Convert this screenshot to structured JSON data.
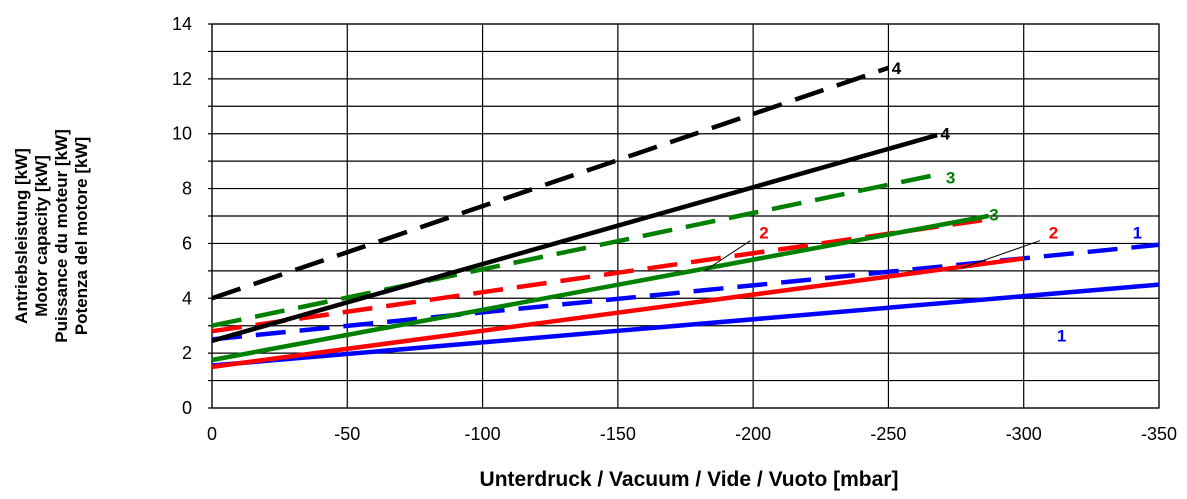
{
  "chart_data": {
    "type": "line",
    "xlabel": "Unterdruck / Vacuum / Vide / Vuoto   [mbar]",
    "ylabel_lines": [
      "Antriebsleistung [kW]",
      "Motor capacity [kW]",
      "Puissance du moteur [kW]",
      "Potenza del motore [kW]"
    ],
    "xlim": [
      0,
      -350
    ],
    "ylim": [
      0,
      14
    ],
    "x_ticks": [
      0,
      -50,
      -100,
      -150,
      -200,
      -250,
      -300,
      -350
    ],
    "x_tick_labels": [
      "0",
      "-50",
      "-100",
      "-150",
      "-200",
      "-250",
      "-300",
      "-350"
    ],
    "y_ticks": [
      0,
      2,
      4,
      6,
      8,
      10,
      12,
      14
    ],
    "y_tick_labels": [
      "0",
      "2",
      "4",
      "6",
      "8",
      "10",
      "12",
      "14"
    ],
    "grid": true,
    "series": [
      {
        "label": "1",
        "color": "#0000ff",
        "dashed": false,
        "points": [
          [
            0,
            1.55
          ],
          [
            -350,
            4.5
          ]
        ]
      },
      {
        "label": "1",
        "color": "#0000ff",
        "dashed": true,
        "points": [
          [
            0,
            2.5
          ],
          [
            -350,
            5.95
          ]
        ]
      },
      {
        "label": "2",
        "color": "#ff0000",
        "dashed": false,
        "points": [
          [
            0,
            1.5
          ],
          [
            -300,
            5.45
          ]
        ]
      },
      {
        "label": "2",
        "color": "#ff0000",
        "dashed": true,
        "points": [
          [
            0,
            2.8
          ],
          [
            -285,
            6.85
          ]
        ]
      },
      {
        "label": "3",
        "color": "#008000",
        "dashed": false,
        "points": [
          [
            0,
            1.75
          ],
          [
            -287,
            7.0
          ]
        ]
      },
      {
        "label": "3",
        "color": "#008000",
        "dashed": true,
        "points": [
          [
            0,
            3.0
          ],
          [
            -270,
            8.55
          ]
        ]
      },
      {
        "label": "4",
        "color": "#000000",
        "dashed": false,
        "points": [
          [
            0,
            2.45
          ],
          [
            -268,
            9.95
          ]
        ]
      },
      {
        "label": "4",
        "color": "#000000",
        "dashed": true,
        "points": [
          [
            0,
            4.0
          ],
          [
            -250,
            12.4
          ]
        ]
      }
    ],
    "curve_labels": [
      {
        "text": "4",
        "color": "#000000",
        "x": -253,
        "y": 12.4
      },
      {
        "text": "4",
        "color": "#000000",
        "x": -271,
        "y": 10.0
      },
      {
        "text": "3",
        "color": "#008000",
        "x": -273,
        "y": 8.4
      },
      {
        "text": "3",
        "color": "#008000",
        "x": -289,
        "y": 7.05
      },
      {
        "text": "2",
        "color": "#ff0000",
        "x": -204,
        "y": 6.4
      },
      {
        "text": "2",
        "color": "#ff0000",
        "x": -311,
        "y": 6.4
      },
      {
        "text": "1",
        "color": "#0000ff",
        "x": -342,
        "y": 6.4
      },
      {
        "text": "1",
        "color": "#0000ff",
        "x": -314,
        "y": 2.65
      }
    ],
    "leader_lines": [
      {
        "color": "#000000",
        "from": [
          -199,
          6.1
        ],
        "to": [
          -182,
          5.0
        ]
      },
      {
        "color": "#000000",
        "from": [
          -306,
          6.1
        ],
        "to": [
          -277,
          5.1
        ]
      }
    ]
  }
}
